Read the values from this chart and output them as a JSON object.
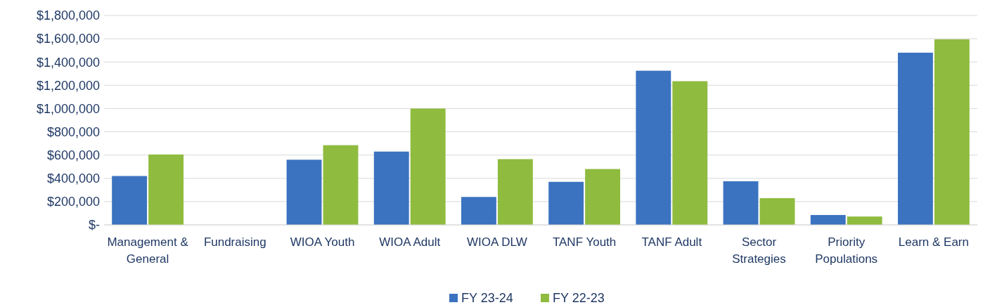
{
  "chart_data": {
    "type": "bar",
    "categories": [
      "Management & General",
      "Fundraising",
      "WIOA Youth",
      "WIOA Adult",
      "WIOA DLW",
      "TANF Youth",
      "TANF Adult",
      "Sector Strategies",
      "Priority Populations",
      "Learn & Earn"
    ],
    "series": [
      {
        "name": "FY 23-24",
        "color": "#3b73c0",
        "values": [
          420000,
          0,
          560000,
          630000,
          240000,
          370000,
          1325000,
          375000,
          85000,
          1480000
        ]
      },
      {
        "name": "FY 22-23",
        "color": "#8fbb3f",
        "values": [
          605000,
          0,
          685000,
          1000000,
          565000,
          480000,
          1235000,
          230000,
          72000,
          1595000
        ]
      }
    ],
    "ylim": [
      0,
      1800000
    ],
    "yticks": [
      {
        "value": 0,
        "label": "$-"
      },
      {
        "value": 200000,
        "label": "$200,000"
      },
      {
        "value": 400000,
        "label": "$400,000"
      },
      {
        "value": 600000,
        "label": "$600,000"
      },
      {
        "value": 800000,
        "label": "$800,000"
      },
      {
        "value": 1000000,
        "label": "$1,000,000"
      },
      {
        "value": 1200000,
        "label": "$1,200,000"
      },
      {
        "value": 1400000,
        "label": "$1,400,000"
      },
      {
        "value": 1600000,
        "label": "$1,600,000"
      },
      {
        "value": 1800000,
        "label": "$1,800,000"
      }
    ],
    "grid": "y",
    "legend": "bottom"
  }
}
